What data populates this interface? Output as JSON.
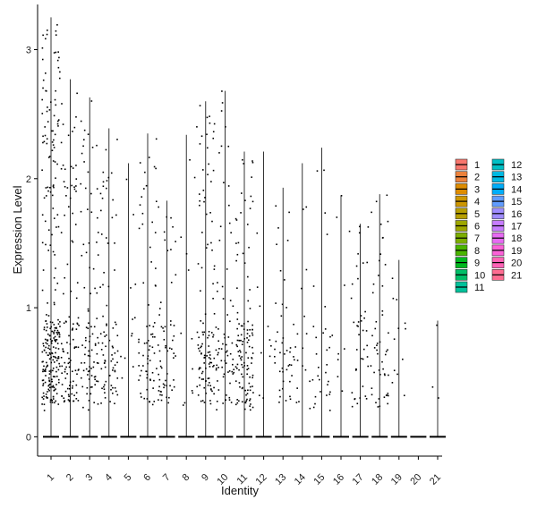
{
  "chart_data": {
    "type": "violin",
    "xlabel": "Identity",
    "ylabel": "Expression Level",
    "ylim": [
      -0.15,
      3.35
    ],
    "yticks": [
      0,
      1,
      2,
      3
    ],
    "categories": [
      "1",
      "2",
      "3",
      "4",
      "5",
      "6",
      "7",
      "8",
      "9",
      "10",
      "11",
      "12",
      "13",
      "14",
      "15",
      "16",
      "17",
      "18",
      "19",
      "20",
      "21"
    ],
    "max_values": [
      3.25,
      2.77,
      2.63,
      2.39,
      2.12,
      2.35,
      1.83,
      2.34,
      2.6,
      2.68,
      2.21,
      2.21,
      1.93,
      2.12,
      2.24,
      1.87,
      1.65,
      1.88,
      1.37,
      0.0,
      0.9
    ],
    "colors": [
      "#F8766D",
      "#EC823C",
      "#DE8C00",
      "#CD9600",
      "#B79F00",
      "#9EA700",
      "#7CAE00",
      "#4AB500",
      "#00B81F",
      "#00BE67",
      "#00C19A",
      "#00BFC4",
      "#00B9E3",
      "#00ADFA",
      "#619CFF",
      "#9F8CFF",
      "#C77CFF",
      "#E76BF3",
      "#FB61D7",
      "#FF63B6",
      "#FF6C91"
    ],
    "legend": {
      "position": "right",
      "labels": [
        "1",
        "2",
        "3",
        "4",
        "5",
        "6",
        "7",
        "8",
        "9",
        "10",
        "11",
        "12",
        "13",
        "14",
        "15",
        "16",
        "17",
        "18",
        "19",
        "20",
        "21"
      ]
    },
    "grid": false
  }
}
